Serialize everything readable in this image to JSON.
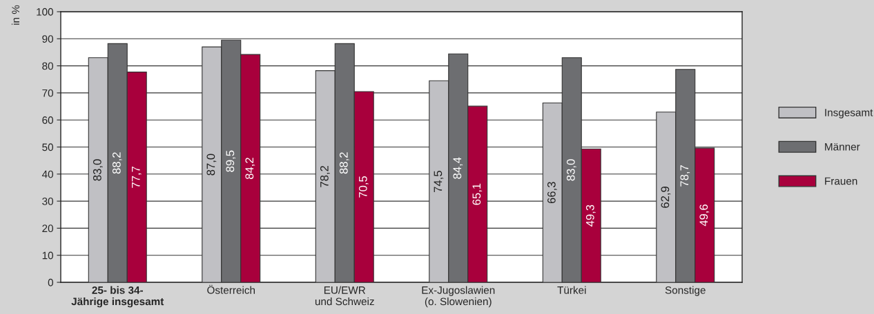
{
  "chart_data": {
    "type": "bar",
    "categories": [
      "25- bis 34-\nJährige insgesamt",
      "Österreich",
      "EU/EWR\nund Schweiz",
      "Ex-Jugoslawien\n(o. Slowenien)",
      "Türkei",
      "Sonstige"
    ],
    "series": [
      {
        "name": "Insgesamt",
        "color": "#c0c0c4",
        "values": [
          83.0,
          87.0,
          78.2,
          74.5,
          66.3,
          62.9
        ],
        "value_labels": [
          "83,0",
          "87,0",
          "78,2",
          "74,5",
          "66,3",
          "62,9"
        ]
      },
      {
        "name": "Männer",
        "color": "#6d6e71",
        "values": [
          88.2,
          89.5,
          88.2,
          84.4,
          83.0,
          78.7
        ],
        "value_labels": [
          "88,2",
          "89,5",
          "88,2",
          "84,4",
          "83,0",
          "78,7"
        ]
      },
      {
        "name": "Frauen",
        "color": "#a8003c",
        "values": [
          77.7,
          84.2,
          70.5,
          65.1,
          49.3,
          49.6
        ],
        "value_labels": [
          "77,7",
          "84,2",
          "70,5",
          "65,1",
          "49,3",
          "49,6"
        ]
      }
    ],
    "ylabel": "in %",
    "ylim": [
      0,
      100
    ],
    "yticks": [
      0,
      10,
      20,
      30,
      40,
      50,
      60,
      70,
      80,
      90,
      100
    ],
    "grid": "y",
    "legend": "right"
  }
}
